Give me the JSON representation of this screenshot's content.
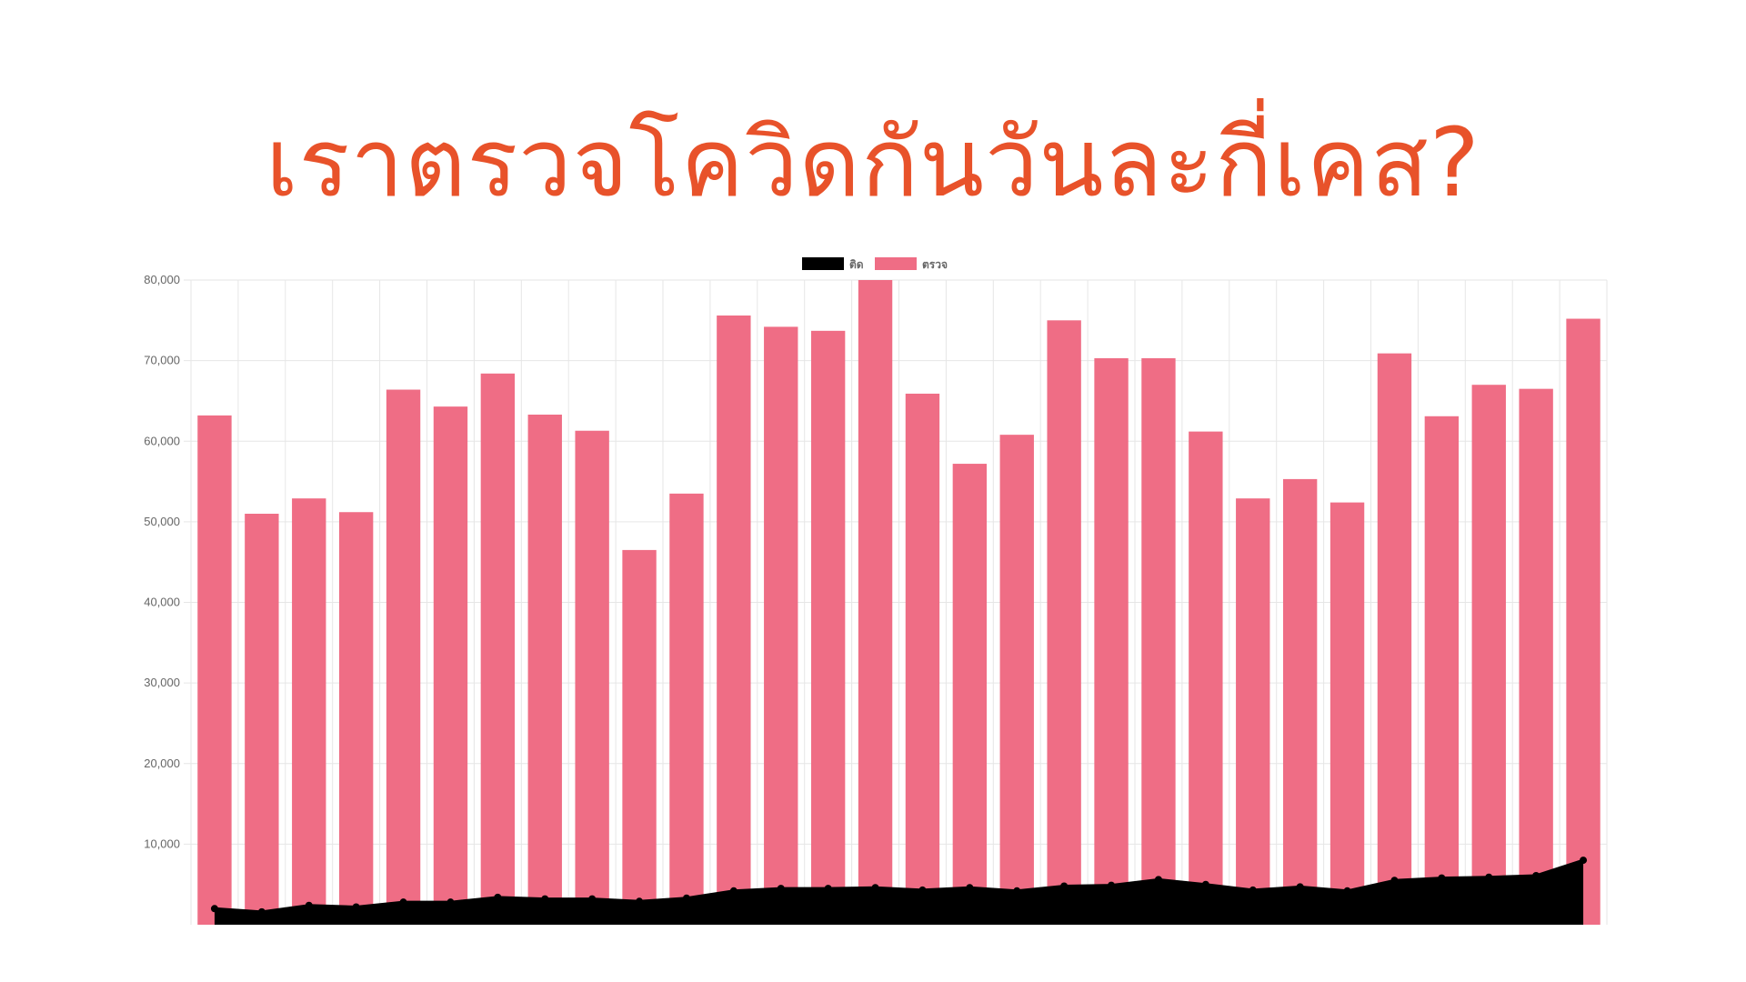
{
  "title": "เราตรวจโควิดกันวันละกี่เคส?",
  "chart_data": {
    "type": "bar",
    "grid": true,
    "legend_position": "top",
    "ylim": [
      0,
      80000
    ],
    "yticks": [
      "10,000",
      "20,000",
      "30,000",
      "40,000",
      "50,000",
      "60,000",
      "70,000",
      "80,000"
    ],
    "ytick_values": [
      10000,
      20000,
      30000,
      40000,
      50000,
      60000,
      70000,
      80000
    ],
    "series": [
      {
        "name": "ติด",
        "type": "area",
        "color": "#000000",
        "values": [
          2000,
          1600,
          2400,
          2200,
          2800,
          2800,
          3400,
          3200,
          3200,
          2900,
          3300,
          4200,
          4500,
          4500,
          4600,
          4300,
          4600,
          4200,
          4800,
          4900,
          5600,
          5000,
          4300,
          4700,
          4200,
          5500,
          5800,
          5900,
          6100,
          8000
        ]
      },
      {
        "name": "ตรวจ",
        "type": "bar",
        "color": "#ef6d85",
        "values": [
          63200,
          51000,
          52900,
          51200,
          66400,
          64300,
          68400,
          63300,
          61300,
          46500,
          53500,
          75600,
          74200,
          73700,
          80000,
          65900,
          57200,
          60800,
          75000,
          70300,
          70300,
          61200,
          52900,
          55300,
          52400,
          70900,
          63100,
          67000,
          66500,
          75200
        ]
      }
    ]
  }
}
